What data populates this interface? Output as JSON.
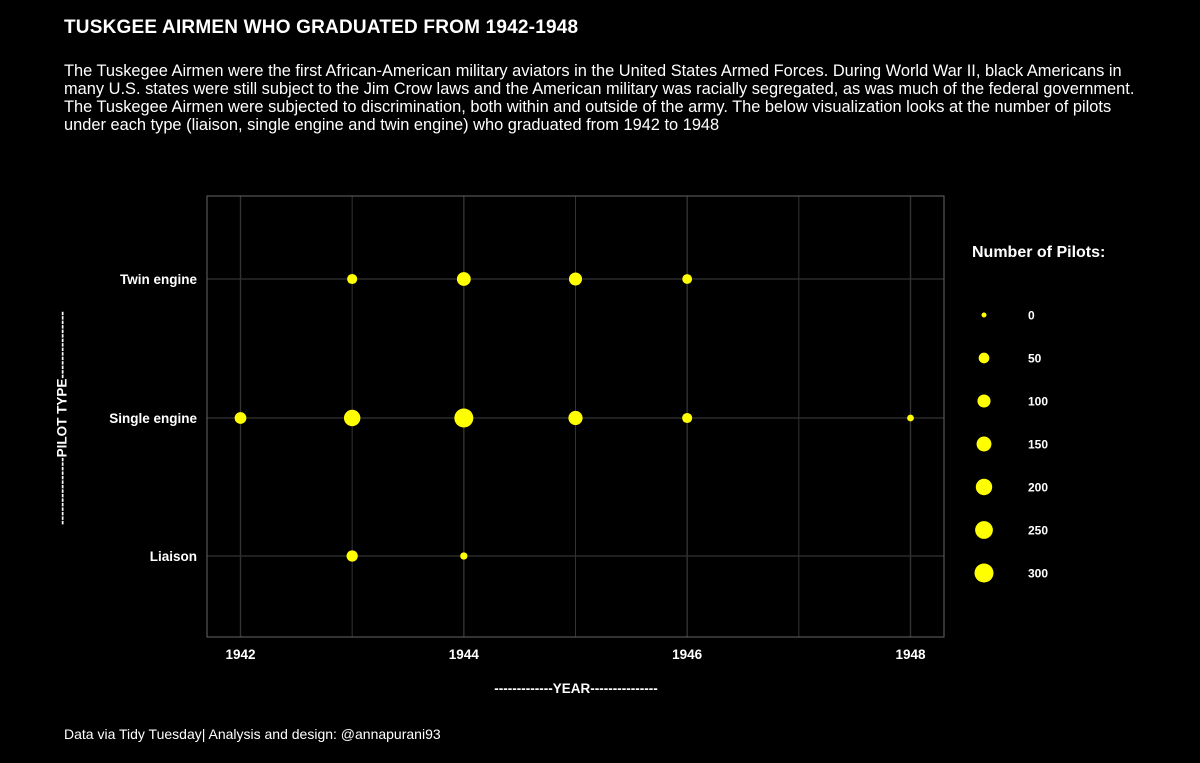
{
  "header": {
    "title": "TUSKGEE AIRMEN WHO GRADUATED FROM 1942-1948",
    "subtitle": "The Tuskegee Airmen were the first African-American military aviators in the United States Armed Forces. During World War II, black Americans in many U.S. states were still subject to the Jim Crow laws and the American military was racially segregated, as was much of the federal government. The Tuskegee Airmen were subjected to discrimination, both within and outside of the army. The below visualization looks at the number of pilots under each type (liaison, single engine and twin engine) who graduated from 1942 to 1948"
  },
  "caption": "Data via Tidy Tuesday| Analysis and design: @annapurani93",
  "colors": {
    "background": "#000000",
    "point": "#ffff00",
    "grid": "#333333",
    "panel_border": "#666666"
  },
  "chart_data": {
    "type": "scatter",
    "xlabel": "-------------YEAR---------------",
    "ylabel": "---------------PILOT TYPE---------------",
    "x_ticks": [
      1942,
      1944,
      1946,
      1948
    ],
    "xlim": [
      1941.7,
      1948.3
    ],
    "categories": [
      "Liaison",
      "Single engine",
      "Twin engine"
    ],
    "size_legend": {
      "title": "Number of Pilots:",
      "values": [
        0,
        50,
        100,
        150,
        200,
        250,
        300
      ],
      "labels": [
        "0",
        "50",
        "100",
        "150",
        "200",
        "250",
        "300"
      ]
    },
    "points": [
      {
        "x": 1943,
        "category": "Twin engine",
        "value": 40
      },
      {
        "x": 1944,
        "category": "Twin engine",
        "value": 120
      },
      {
        "x": 1945,
        "category": "Twin engine",
        "value": 100
      },
      {
        "x": 1946,
        "category": "Twin engine",
        "value": 35
      },
      {
        "x": 1942,
        "category": "Single engine",
        "value": 70
      },
      {
        "x": 1943,
        "category": "Single engine",
        "value": 200
      },
      {
        "x": 1944,
        "category": "Single engine",
        "value": 300
      },
      {
        "x": 1945,
        "category": "Single engine",
        "value": 130
      },
      {
        "x": 1946,
        "category": "Single engine",
        "value": 40
      },
      {
        "x": 1948,
        "category": "Single engine",
        "value": 5
      },
      {
        "x": 1943,
        "category": "Liaison",
        "value": 60
      },
      {
        "x": 1944,
        "category": "Liaison",
        "value": 8
      }
    ]
  }
}
